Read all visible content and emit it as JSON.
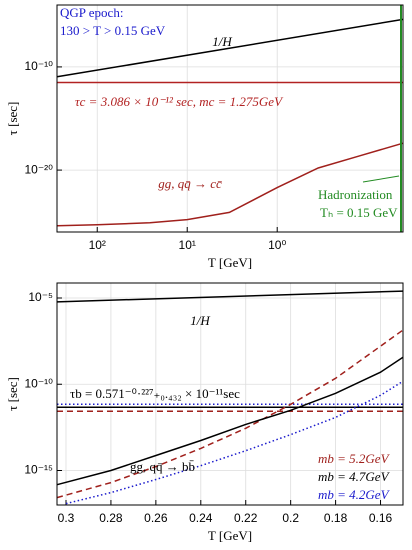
{
  "chart_data": [
    {
      "type": "line",
      "xlabel": "T [GeV]",
      "ylabel": "τ [sec]",
      "xlog": true,
      "ylog": true,
      "grid": true,
      "xlim": [
        280,
        0.04
      ],
      "ylim": [
        1e-26,
        0.0001
      ],
      "xticks": [
        {
          "value": 100,
          "label": "10²"
        },
        {
          "value": 10,
          "label": "10¹"
        },
        {
          "value": 1,
          "label": "10⁰"
        }
      ],
      "yticks": [
        {
          "value": 1e-20,
          "label": "10⁻²⁰"
        },
        {
          "value": 1e-10,
          "label": "10⁻¹⁰"
        }
      ],
      "annotations": [
        {
          "text": "QGP epoch:",
          "color": "#1a1acc"
        },
        {
          "text": "130 > T > 0.15 GeV",
          "color": "#1a1acc"
        },
        {
          "text": "Hadronization",
          "color": "#228b22"
        },
        {
          "text": "Tₕ = 0.15 GeV",
          "color": "#228b22"
        }
      ],
      "series": [
        {
          "name": "1/H",
          "color": "#000000",
          "dash": "solid",
          "x": [
            280,
            0.04
          ],
          "values": [
            1.1e-11,
            4e-06
          ]
        },
        {
          "name": "τc = 3.086 × 10⁻¹² sec, mc = 1.275GeV",
          "color": "#b22222",
          "dash": "solid",
          "x": [
            280,
            0.04
          ],
          "values": [
            3.086e-12,
            3.086e-12
          ]
        },
        {
          "name": "gg, qq̄ → cc̄",
          "color": "#a0201c",
          "dash": "solid",
          "x": [
            280,
            100,
            26,
            10,
            3.4,
            1,
            0.35,
            0.125,
            0.04
          ],
          "values": [
            4e-26,
            5e-26,
            8e-26,
            1.6e-25,
            8e-25,
            2e-22,
            1.6e-20,
            2.2e-19,
            4e-18
          ]
        }
      ]
    },
    {
      "type": "line",
      "xlabel": "T [GeV]",
      "ylabel": "τ [sec]",
      "xlog": false,
      "ylog": true,
      "grid": true,
      "xlim": [
        0.304,
        0.15
      ],
      "ylim": [
        1e-17,
        7.4e-05
      ],
      "xticks": [
        0.3,
        0.28,
        0.26,
        0.24,
        0.22,
        0.2,
        0.18,
        0.16
      ],
      "yticks": [
        {
          "value": 1e-15,
          "label": "10⁻¹⁵"
        },
        {
          "value": 1e-10,
          "label": "10⁻¹⁰"
        },
        {
          "value": 1e-05,
          "label": "10⁻⁵"
        }
      ],
      "annotations": [
        {
          "text": "τb = 0.571⁻⁰·²²⁷₊₀.₄₃₂ × 10⁻¹¹sec",
          "color": "#000000"
        },
        {
          "text": "gg, qq̄ → bb̄",
          "color": "#000000"
        }
      ],
      "series": [
        {
          "name": "1/H",
          "color": "#000000",
          "dash": "solid",
          "x": [
            0.304,
            0.15
          ],
          "values": [
            5.9e-06,
            2.5e-05
          ]
        },
        {
          "color": "#1a1acc",
          "dash": "dotted",
          "x": [
            0.304,
            0.15
          ],
          "values": [
            6.9e-12,
            6.9e-12
          ]
        },
        {
          "color": "#000000",
          "dash": "solid",
          "x": [
            0.304,
            0.15
          ],
          "values": [
            4.6e-12,
            4.6e-12
          ]
        },
        {
          "color": "#a0201c",
          "dash": "dashed",
          "x": [
            0.304,
            0.15
          ],
          "values": [
            2.7e-12,
            2.7e-12
          ]
        },
        {
          "name": "mb = 5.2GeV",
          "color": "#a0201c",
          "dash": "dashed",
          "x": [
            0.304,
            0.28,
            0.26,
            0.24,
            0.22,
            0.2,
            0.18,
            0.16,
            0.15
          ],
          "values": [
            2.7e-17,
            2e-16,
            1.7e-15,
            1.9e-14,
            2.8e-13,
            6.9e-12,
            2.2e-10,
            1.6e-08,
            1.4e-07
          ]
        },
        {
          "name": "mb = 4.7GeV",
          "color": "#000000",
          "dash": "solid",
          "x": [
            0.304,
            0.28,
            0.26,
            0.24,
            0.22,
            0.2,
            0.18,
            0.16,
            0.15
          ],
          "values": [
            1.5e-16,
            1e-15,
            7.4e-15,
            5.5e-14,
            4.7e-13,
            3.1e-12,
            3e-11,
            5e-10,
            3.7e-09
          ]
        },
        {
          "name": "mb = 4.2GeV",
          "color": "#1a1acc",
          "dash": "dotted",
          "x": [
            0.3,
            0.28,
            0.26,
            0.24,
            0.22,
            0.2,
            0.18,
            0.16,
            0.15
          ],
          "values": [
            1.2e-17,
            5.2e-17,
            3e-16,
            1.9e-15,
            1.4e-14,
            1.2e-13,
            1.2e-12,
            2.3e-11,
            1.5e-10
          ]
        }
      ]
    }
  ]
}
